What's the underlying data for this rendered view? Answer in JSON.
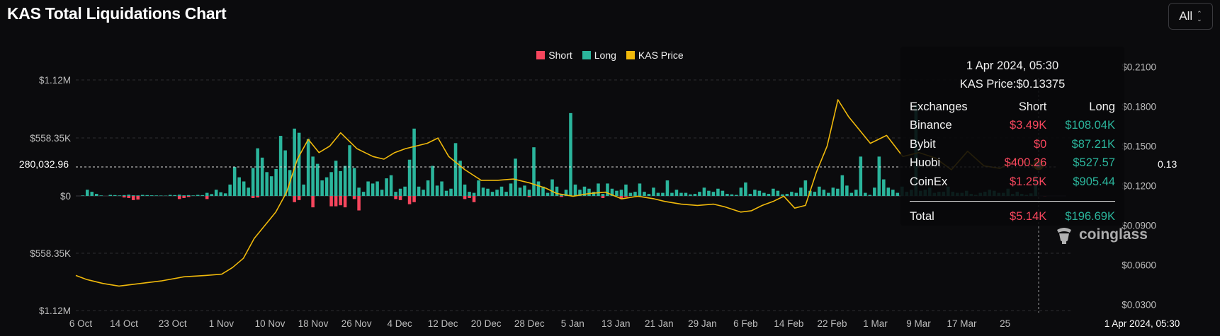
{
  "page": {
    "title": "KAS Total Liquidations Chart",
    "range_select": "All"
  },
  "legend": [
    {
      "label": "Short",
      "color": "#f6465d"
    },
    {
      "label": "Long",
      "color": "#2bb59c"
    },
    {
      "label": "KAS Price",
      "color": "#f0b90b"
    }
  ],
  "tooltip": {
    "date": "1 Apr 2024, 05:30",
    "price": "KAS Price:$0.13375",
    "headers": [
      "Exchanges",
      "Short",
      "Long"
    ],
    "rows": [
      [
        "Binance",
        "$3.49K",
        "$108.04K"
      ],
      [
        "Bybit",
        "$0",
        "$87.21K"
      ],
      [
        "Huobi",
        "$400.26",
        "$527.57"
      ],
      [
        "CoinEx",
        "$1.25K",
        "$905.44"
      ]
    ],
    "total": [
      "Total",
      "$5.14K",
      "$196.69K"
    ]
  },
  "watermark": "coinglass",
  "chart_data": {
    "type": "bar",
    "title": "KAS Total Liquidations Chart",
    "series_meta": [
      {
        "name": "Short",
        "color": "#f6465d",
        "axis": "left"
      },
      {
        "name": "Long",
        "color": "#2bb59c",
        "axis": "left"
      },
      {
        "name": "KAS Price",
        "color": "#f0b90b",
        "axis": "right",
        "type": "line"
      }
    ],
    "y_left": {
      "ticks": [
        "$1.12M",
        "$558.35K",
        "$0",
        "$558.35K",
        "$1.12M"
      ],
      "range": [
        -1120000,
        1120000
      ]
    },
    "y_right": {
      "ticks": [
        "$0.2100",
        "$0.1800",
        "$0.1500",
        "$0.1200",
        "$0.0900",
        "$0.0600",
        "$0.0300"
      ],
      "range": [
        0.005,
        0.215
      ]
    },
    "x_ticks": [
      "6 Oct",
      "14 Oct",
      "23 Oct",
      "1 Nov",
      "10 Nov",
      "18 Nov",
      "26 Nov",
      "4 Dec",
      "12 Dec",
      "20 Dec",
      "28 Dec",
      "5 Jan",
      "13 Jan",
      "21 Jan",
      "29 Jan",
      "6 Feb",
      "14 Feb",
      "22 Feb",
      "1 Mar",
      "9 Mar",
      "17 Mar",
      "25"
    ],
    "x_range": [
      "2023-10-06",
      "2024-04-01"
    ],
    "crosshair": {
      "left_value": "280,032.96",
      "right_value": "0.13",
      "x_label": "1 Apr 2024, 05:30"
    },
    "long": [
      0,
      5,
      60,
      40,
      20,
      5,
      0,
      10,
      8,
      5,
      8,
      12,
      6,
      5,
      10,
      8,
      6,
      5,
      4,
      3,
      10,
      8,
      12,
      6,
      8,
      5,
      10,
      8,
      30,
      18,
      60,
      35,
      25,
      110,
      280,
      180,
      140,
      80,
      270,
      460,
      370,
      230,
      190,
      260,
      580,
      440,
      250,
      650,
      610,
      110,
      550,
      380,
      310,
      150,
      180,
      230,
      340,
      240,
      290,
      490,
      270,
      80,
      40,
      140,
      120,
      140,
      60,
      170,
      200,
      40,
      70,
      90,
      350,
      650,
      90,
      60,
      150,
      290,
      100,
      140,
      50,
      70,
      510,
      340,
      110,
      40,
      30,
      150,
      80,
      70,
      40,
      60,
      90,
      40,
      120,
      360,
      80,
      100,
      60,
      470,
      140,
      90,
      30,
      160,
      90,
      20,
      60,
      800,
      110,
      60,
      90,
      70,
      40,
      120,
      20,
      120,
      70,
      50,
      60,
      110,
      30,
      40,
      120,
      40,
      20,
      80,
      30,
      30,
      150,
      30,
      60,
      30,
      30,
      15,
      20,
      40,
      80,
      50,
      40,
      70,
      50,
      20,
      15,
      10,
      80,
      130,
      20,
      60,
      50,
      30,
      20,
      70,
      50,
      15,
      20,
      40,
      30,
      80,
      150,
      50,
      40,
      90,
      60,
      30,
      80,
      70,
      200,
      100,
      30,
      60,
      380,
      30,
      10,
      80,
      380,
      160,
      80,
      60,
      30,
      90,
      40,
      60,
      880,
      50,
      60,
      80,
      30,
      40,
      40,
      90,
      40,
      30,
      30,
      50,
      20,
      10,
      30,
      40,
      60,
      50,
      30,
      30,
      70,
      20,
      40,
      20,
      10,
      25,
      196
    ],
    "short": [
      0,
      0,
      0,
      0,
      0,
      0,
      0,
      0,
      0,
      0,
      15,
      20,
      40,
      35,
      0,
      0,
      0,
      0,
      0,
      0,
      0,
      0,
      30,
      20,
      10,
      0,
      0,
      0,
      30,
      0,
      0,
      0,
      0,
      0,
      0,
      0,
      0,
      0,
      20,
      15,
      0,
      0,
      0,
      0,
      0,
      0,
      0,
      60,
      40,
      0,
      0,
      110,
      0,
      0,
      0,
      100,
      100,
      90,
      110,
      0,
      30,
      140,
      0,
      0,
      0,
      0,
      0,
      0,
      0,
      30,
      40,
      0,
      80,
      60,
      0,
      0,
      0,
      0,
      0,
      0,
      0,
      0,
      0,
      0,
      30,
      20,
      60,
      0,
      0,
      0,
      0,
      0,
      0,
      0,
      0,
      0,
      0,
      0,
      10,
      0,
      0,
      0,
      0,
      0,
      0,
      10,
      0,
      0,
      0,
      0,
      0,
      0,
      0,
      0,
      20,
      0,
      0,
      0,
      30,
      10,
      0,
      0,
      0,
      0,
      0,
      0,
      0,
      0,
      0,
      0,
      0,
      0,
      0,
      0,
      0,
      0,
      0,
      0,
      0,
      0,
      0,
      0,
      0,
      0,
      0,
      0,
      0,
      0,
      0,
      0,
      0,
      0,
      0,
      0,
      0,
      0,
      0,
      0,
      0,
      0,
      0,
      0,
      0,
      0,
      0,
      0,
      0,
      0,
      0,
      0,
      0,
      0,
      0,
      0,
      0,
      0,
      0,
      0,
      0,
      0,
      0,
      0,
      0,
      0,
      0,
      0,
      0,
      0,
      0,
      0,
      0,
      0,
      0,
      0,
      0,
      0,
      0,
      0,
      0,
      0,
      0,
      0,
      0,
      0,
      0,
      0,
      0,
      0,
      0,
      0,
      5
    ],
    "price": [
      0.052,
      0.049,
      0.046,
      0.044,
      0.046,
      0.048,
      0.051,
      0.052,
      0.053,
      0.058,
      0.065,
      0.08,
      0.09,
      0.1,
      0.115,
      0.14,
      0.155,
      0.145,
      0.15,
      0.16,
      0.148,
      0.142,
      0.14,
      0.145,
      0.148,
      0.15,
      0.152,
      0.156,
      0.142,
      0.132,
      0.124,
      0.124,
      0.125,
      0.122,
      0.118,
      0.114,
      0.112,
      0.114,
      0.115,
      0.11,
      0.112,
      0.11,
      0.108,
      0.106,
      0.105,
      0.106,
      0.104,
      0.1,
      0.101,
      0.105,
      0.108,
      0.112,
      0.103,
      0.105,
      0.13,
      0.15,
      0.185,
      0.172,
      0.162,
      0.152,
      0.158,
      0.142,
      0.145,
      0.141,
      0.132,
      0.146,
      0.135,
      0.133,
      0.14,
      0.134
    ],
    "price_dates": [
      "2023-10-06",
      "2023-10-08",
      "2023-10-11",
      "2023-10-14",
      "2023-10-18",
      "2023-10-22",
      "2023-10-26",
      "2023-10-30",
      "2023-11-02",
      "2023-11-04",
      "2023-11-06",
      "2023-11-08",
      "2023-11-10",
      "2023-11-12",
      "2023-11-14",
      "2023-11-16",
      "2023-11-18",
      "2023-11-20",
      "2023-11-22",
      "2023-11-24",
      "2023-11-27",
      "2023-11-30",
      "2023-12-02",
      "2023-12-04",
      "2023-12-06",
      "2023-12-08",
      "2023-12-10",
      "2023-12-12",
      "2023-12-14",
      "2023-12-17",
      "2023-12-20",
      "2023-12-23",
      "2023-12-26",
      "2023-12-29",
      "2024-01-01",
      "2024-01-03",
      "2024-01-06",
      "2024-01-09",
      "2024-01-12",
      "2024-01-15",
      "2024-01-18",
      "2024-01-21",
      "2024-01-23",
      "2024-01-26",
      "2024-01-29",
      "2024-02-01",
      "2024-02-03",
      "2024-02-06",
      "2024-02-08",
      "2024-02-10",
      "2024-02-12",
      "2024-02-14",
      "2024-02-16",
      "2024-02-18",
      "2024-02-20",
      "2024-02-22",
      "2024-02-24",
      "2024-02-26",
      "2024-02-28",
      "2024-03-01",
      "2024-03-04",
      "2024-03-07",
      "2024-03-10",
      "2024-03-13",
      "2024-03-16",
      "2024-03-19",
      "2024-03-22",
      "2024-03-25",
      "2024-03-28",
      "2024-04-01"
    ],
    "units_bars": "thousands USD"
  }
}
